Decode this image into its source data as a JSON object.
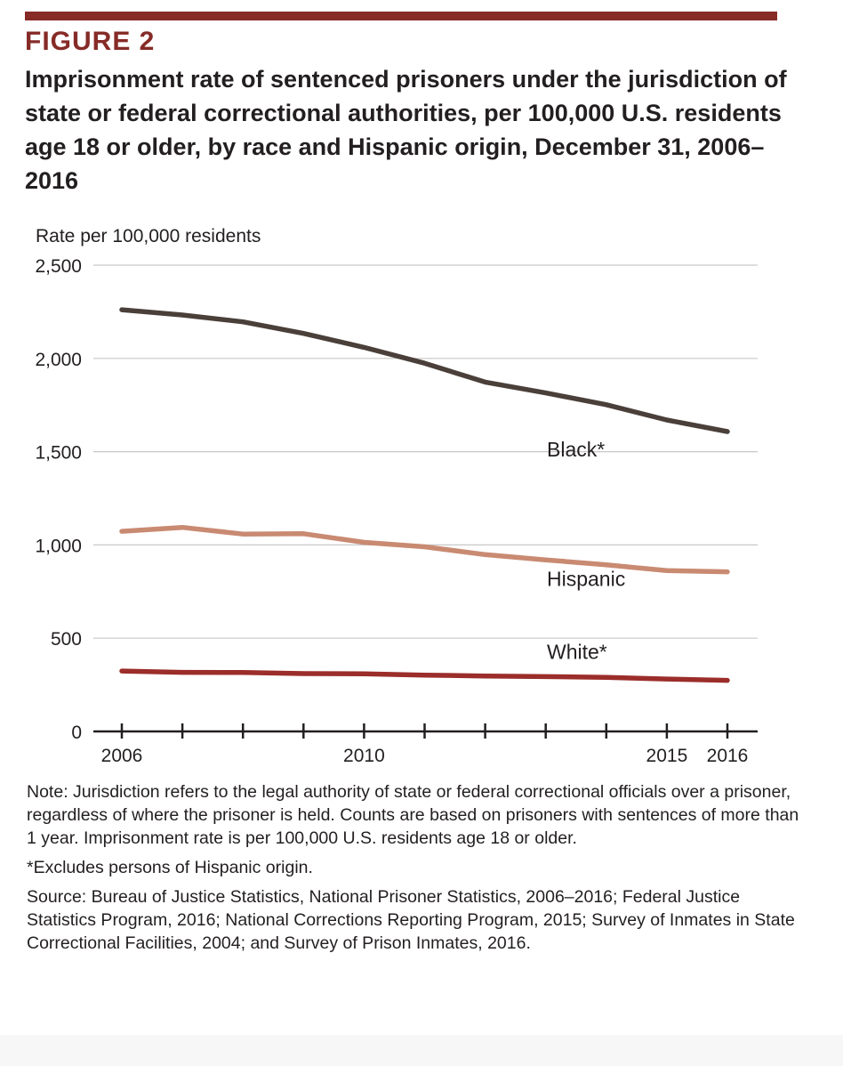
{
  "figure": {
    "label": "FIGURE 2",
    "title": "Imprisonment rate of sentenced prisoners under the jurisdiction of state or federal correctional authorities, per 100,000 U.S. residents age 18 or older, by race and Hispanic origin, December 31, 2006–2016"
  },
  "colors": {
    "accent": "#862b27",
    "black_series": "#4a4039",
    "hispanic_series": "#c98a72",
    "white_series": "#9b2d2a",
    "grid": "#c8c8c8"
  },
  "chart_data": {
    "type": "line",
    "title": "Imprisonment rate of sentenced prisoners under the jurisdiction of state or federal correctional authorities, per 100,000 U.S. residents age 18 or older, by race and Hispanic origin, December 31, 2006–2016",
    "ylabel": "Rate per 100,000 residents",
    "xlabel": "",
    "ylim": [
      0,
      2500
    ],
    "yticks": [
      0,
      500,
      1000,
      1500,
      2000,
      2500
    ],
    "ytick_labels": [
      "0",
      "500",
      "1,000",
      "1,500",
      "2,000",
      "2,500"
    ],
    "x": [
      2006,
      2007,
      2008,
      2009,
      2010,
      2011,
      2012,
      2013,
      2014,
      2015,
      2016
    ],
    "xlim": [
      2006,
      2016
    ],
    "xtick_labels": [
      {
        "x": 2006,
        "label": "2006"
      },
      {
        "x": 2010,
        "label": "2010"
      },
      {
        "x": 2015,
        "label": "2015"
      },
      {
        "x": 2016,
        "label": "2016"
      }
    ],
    "grid": true,
    "series": [
      {
        "name": "Black*",
        "color": "#4a4039",
        "values": [
          2261,
          2233,
          2196,
          2134,
          2059,
          1974,
          1873,
          1815,
          1752,
          1670,
          1608
        ]
      },
      {
        "name": "Hispanic",
        "color": "#c98a72",
        "values": [
          1073,
          1094,
          1058,
          1060,
          1014,
          990,
          948,
          920,
          893,
          862,
          856
        ]
      },
      {
        "name": "White*",
        "color": "#9b2d2a",
        "values": [
          324,
          317,
          316,
          310,
          309,
          302,
          297,
          294,
          290,
          281,
          274
        ]
      }
    ]
  },
  "notes": {
    "note": "Note: Jurisdiction refers to the legal authority of state or federal correctional officials over a prisoner, regardless of where the prisoner is held. Counts are based on prisoners with sentences of more than 1 year. Imprisonment rate is per 100,000 U.S. residents age 18 or older.",
    "footnote": "*Excludes persons of Hispanic origin.",
    "source": "Source: Bureau of Justice Statistics, National Prisoner Statistics, 2006–2016; Federal Justice Statistics Program, 2016; National Corrections Reporting Program, 2015; Survey of Inmates in State Correctional Facilities, 2004; and Survey of Prison Inmates, 2016."
  }
}
